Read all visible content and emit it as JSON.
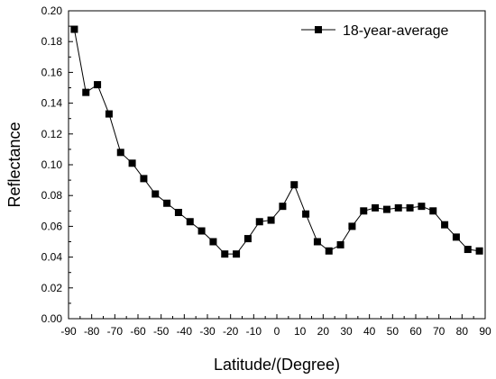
{
  "chart_data": {
    "type": "line",
    "xlabel": "Latitude/(Degree)",
    "ylabel": "Reflectance",
    "xlim": [
      -90,
      90
    ],
    "ylim": [
      0.0,
      0.2
    ],
    "x_ticks": [
      "-90",
      "-80",
      "-70",
      "-60",
      "-50",
      "-40",
      "-30",
      "-20",
      "-10",
      "0",
      "10",
      "20",
      "30",
      "40",
      "50",
      "60",
      "70",
      "80",
      "90"
    ],
    "y_ticks": [
      "0.00",
      "0.02",
      "0.04",
      "0.06",
      "0.08",
      "0.10",
      "0.12",
      "0.14",
      "0.16",
      "0.18",
      "0.20"
    ],
    "legend_position": "top-right",
    "grid": false,
    "series": [
      {
        "name": "18-year-average",
        "marker": "square",
        "color": "#000000",
        "x": [
          -87.5,
          -82.5,
          -77.5,
          -72.5,
          -67.5,
          -62.5,
          -57.5,
          -52.5,
          -47.5,
          -42.5,
          -37.5,
          -32.5,
          -27.5,
          -22.5,
          -17.5,
          -12.5,
          -7.5,
          -2.5,
          2.5,
          7.5,
          12.5,
          17.5,
          22.5,
          27.5,
          32.5,
          37.5,
          42.5,
          47.5,
          52.5,
          57.5,
          62.5,
          67.5,
          72.5,
          77.5,
          82.5,
          87.5
        ],
        "y": [
          0.188,
          0.147,
          0.152,
          0.133,
          0.108,
          0.101,
          0.091,
          0.081,
          0.075,
          0.069,
          0.063,
          0.057,
          0.05,
          0.042,
          0.042,
          0.052,
          0.063,
          0.064,
          0.073,
          0.087,
          0.068,
          0.05,
          0.044,
          0.048,
          0.06,
          0.07,
          0.072,
          0.071,
          0.072,
          0.072,
          0.073,
          0.07,
          0.061,
          0.053,
          0.045,
          0.044
        ]
      }
    ]
  }
}
